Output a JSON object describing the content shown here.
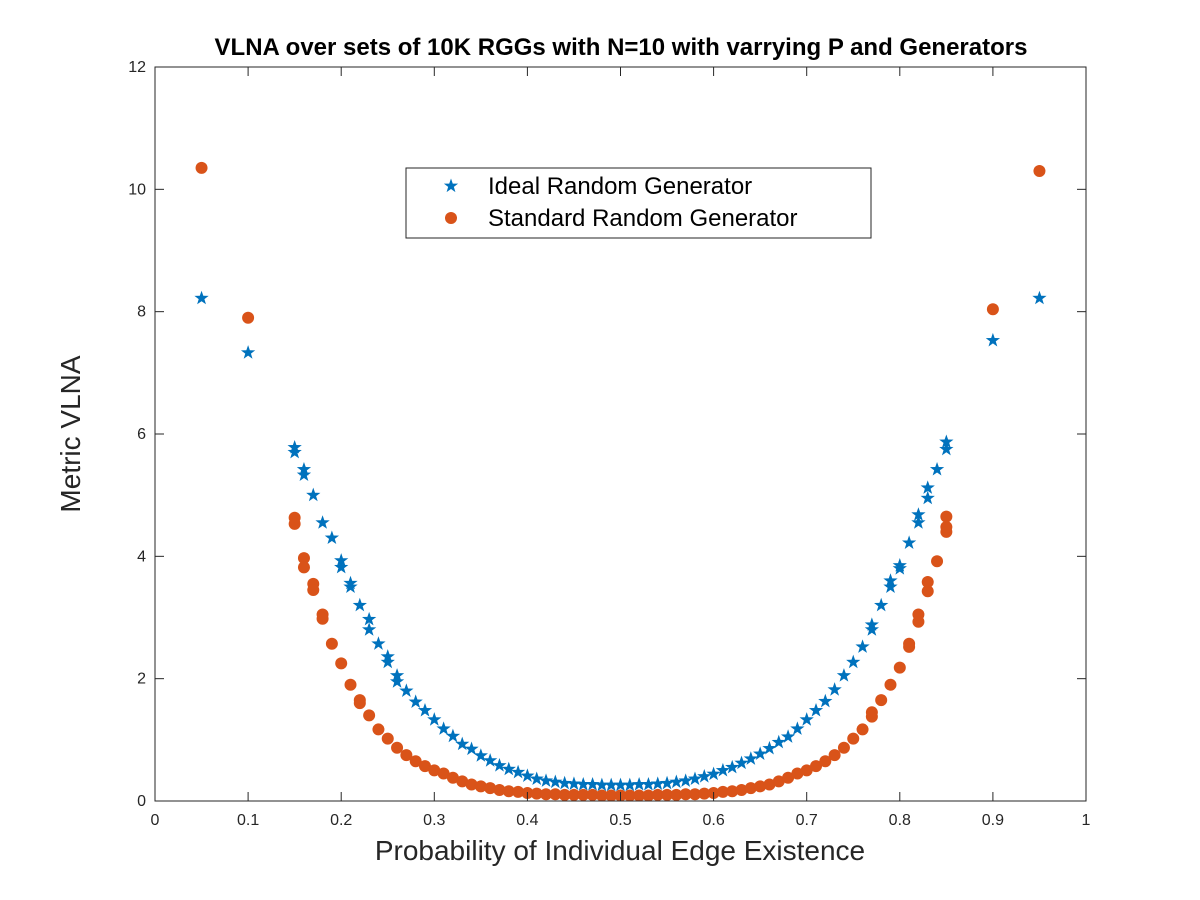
{
  "chart_data": {
    "type": "scatter",
    "title": "VLNA over sets of 10K RGGs with N=10 with varrying P and Generators",
    "xlabel": "Probability of Individual Edge Existence",
    "ylabel": "Metric VLNA",
    "xlim": [
      0,
      1
    ],
    "ylim": [
      0,
      12
    ],
    "xticks": [
      0,
      0.1,
      0.2,
      0.3,
      0.4,
      0.5,
      0.6,
      0.7,
      0.8,
      0.9,
      1
    ],
    "xtick_labels": [
      "0",
      "0.1",
      "0.2",
      "0.3",
      "0.4",
      "0.5",
      "0.6",
      "0.7",
      "0.8",
      "0.9",
      "1"
    ],
    "yticks": [
      0,
      2,
      4,
      6,
      8,
      10,
      12
    ],
    "ytick_labels": [
      "0",
      "2",
      "4",
      "6",
      "8",
      "10",
      "12"
    ],
    "grid": false,
    "legend_position": "top-center",
    "series": [
      {
        "name": "Ideal Random Generator",
        "marker": "star",
        "color": "#0072BD",
        "x": [
          0.05,
          0.1,
          0.15,
          0.15,
          0.16,
          0.16,
          0.17,
          0.18,
          0.19,
          0.2,
          0.2,
          0.21,
          0.21,
          0.22,
          0.23,
          0.23,
          0.24,
          0.25,
          0.25,
          0.26,
          0.26,
          0.27,
          0.28,
          0.29,
          0.3,
          0.31,
          0.32,
          0.33,
          0.34,
          0.35,
          0.36,
          0.37,
          0.38,
          0.39,
          0.4,
          0.41,
          0.42,
          0.43,
          0.44,
          0.45,
          0.46,
          0.47,
          0.48,
          0.49,
          0.5,
          0.51,
          0.52,
          0.53,
          0.54,
          0.55,
          0.56,
          0.57,
          0.58,
          0.59,
          0.6,
          0.61,
          0.62,
          0.63,
          0.64,
          0.65,
          0.66,
          0.67,
          0.68,
          0.69,
          0.7,
          0.71,
          0.72,
          0.73,
          0.74,
          0.75,
          0.76,
          0.77,
          0.77,
          0.78,
          0.79,
          0.79,
          0.8,
          0.8,
          0.81,
          0.82,
          0.82,
          0.83,
          0.83,
          0.84,
          0.85,
          0.85,
          0.9,
          0.95
        ],
        "y": [
          8.22,
          7.33,
          5.78,
          5.7,
          5.42,
          5.33,
          5.0,
          4.55,
          4.3,
          3.93,
          3.82,
          3.56,
          3.5,
          3.2,
          2.97,
          2.8,
          2.57,
          2.36,
          2.27,
          2.05,
          1.95,
          1.8,
          1.62,
          1.48,
          1.33,
          1.18,
          1.06,
          0.93,
          0.85,
          0.74,
          0.66,
          0.58,
          0.52,
          0.47,
          0.41,
          0.36,
          0.33,
          0.31,
          0.29,
          0.28,
          0.27,
          0.27,
          0.26,
          0.26,
          0.26,
          0.26,
          0.27,
          0.27,
          0.28,
          0.29,
          0.31,
          0.33,
          0.36,
          0.4,
          0.44,
          0.5,
          0.55,
          0.62,
          0.69,
          0.77,
          0.86,
          0.96,
          1.05,
          1.18,
          1.33,
          1.48,
          1.63,
          1.82,
          2.05,
          2.27,
          2.52,
          2.8,
          2.88,
          3.2,
          3.5,
          3.6,
          3.8,
          3.85,
          4.22,
          4.55,
          4.68,
          4.95,
          5.12,
          5.42,
          5.75,
          5.87,
          7.53,
          8.22
        ]
      },
      {
        "name": "Standard Random Generator",
        "marker": "circle",
        "color": "#D95319",
        "x": [
          0.05,
          0.1,
          0.15,
          0.15,
          0.16,
          0.16,
          0.17,
          0.17,
          0.18,
          0.18,
          0.19,
          0.2,
          0.21,
          0.22,
          0.22,
          0.23,
          0.24,
          0.25,
          0.26,
          0.27,
          0.28,
          0.29,
          0.3,
          0.31,
          0.32,
          0.33,
          0.34,
          0.35,
          0.36,
          0.37,
          0.38,
          0.39,
          0.4,
          0.41,
          0.42,
          0.43,
          0.44,
          0.45,
          0.46,
          0.47,
          0.48,
          0.49,
          0.5,
          0.51,
          0.52,
          0.53,
          0.54,
          0.55,
          0.56,
          0.57,
          0.58,
          0.59,
          0.6,
          0.61,
          0.62,
          0.63,
          0.64,
          0.65,
          0.66,
          0.67,
          0.68,
          0.69,
          0.7,
          0.71,
          0.72,
          0.73,
          0.74,
          0.75,
          0.76,
          0.77,
          0.77,
          0.78,
          0.79,
          0.8,
          0.81,
          0.81,
          0.82,
          0.82,
          0.83,
          0.83,
          0.84,
          0.85,
          0.85,
          0.85,
          0.9,
          0.95
        ],
        "y": [
          10.35,
          7.9,
          4.63,
          4.53,
          3.97,
          3.82,
          3.55,
          3.45,
          3.05,
          2.98,
          2.57,
          2.25,
          1.9,
          1.65,
          1.6,
          1.4,
          1.17,
          1.02,
          0.87,
          0.75,
          0.65,
          0.57,
          0.5,
          0.45,
          0.38,
          0.32,
          0.27,
          0.24,
          0.21,
          0.18,
          0.16,
          0.15,
          0.13,
          0.12,
          0.11,
          0.11,
          0.1,
          0.1,
          0.1,
          0.1,
          0.09,
          0.09,
          0.09,
          0.09,
          0.09,
          0.09,
          0.1,
          0.1,
          0.1,
          0.11,
          0.11,
          0.12,
          0.13,
          0.15,
          0.16,
          0.18,
          0.21,
          0.24,
          0.27,
          0.32,
          0.38,
          0.45,
          0.5,
          0.57,
          0.65,
          0.75,
          0.87,
          1.02,
          1.17,
          1.38,
          1.45,
          1.65,
          1.9,
          2.18,
          2.52,
          2.57,
          2.93,
          3.05,
          3.43,
          3.58,
          3.92,
          4.4,
          4.48,
          4.65,
          8.04,
          10.3
        ]
      }
    ]
  }
}
